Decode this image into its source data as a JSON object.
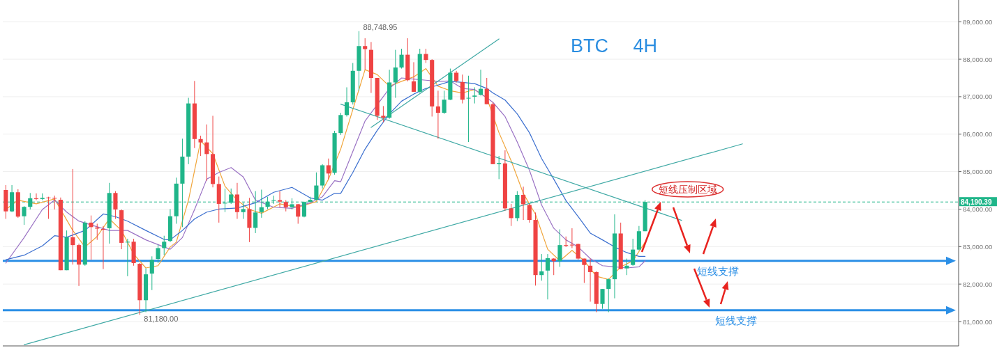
{
  "chart_data": {
    "type": "candlestick",
    "title": "BTC 4H",
    "categories": [
      null,
      null,
      null,
      null,
      null,
      null,
      null,
      null,
      null,
      null,
      null,
      null,
      null,
      null,
      null,
      null,
      null,
      null,
      null,
      null,
      null,
      null,
      null,
      null,
      null,
      null,
      null,
      null,
      null,
      null,
      null,
      null,
      null,
      null,
      null,
      null,
      null,
      null,
      null,
      null,
      null,
      null,
      null,
      null,
      null,
      null,
      null,
      null,
      null,
      null,
      null,
      null,
      null,
      null,
      null,
      null,
      null,
      null,
      null,
      null,
      null,
      null,
      null,
      null,
      null,
      null,
      null,
      null,
      null,
      null,
      null,
      null,
      null,
      null,
      null,
      null,
      null,
      null,
      null,
      null,
      null,
      null,
      null,
      null,
      null,
      null,
      null,
      null,
      null,
      null,
      null,
      null,
      null,
      null,
      null,
      null,
      null,
      null,
      null,
      null,
      null,
      null,
      null,
      null,
      null,
      null,
      null,
      null,
      null,
      null,
      null,
      null,
      null,
      null,
      null,
      null,
      null,
      null,
      null,
      null,
      null,
      null,
      null,
      null,
      null,
      null,
      null,
      null,
      null,
      null,
      null,
      null,
      null,
      null,
      null,
      null,
      null,
      null,
      null,
      null,
      null,
      null,
      null,
      null,
      null,
      null,
      null,
      null,
      null,
      null,
      null,
      null,
      null,
      null,
      null,
      null,
      null
    ],
    "ohlc": [
      [
        84510,
        84640,
        83740,
        83940
      ],
      [
        83940,
        84640,
        83920,
        84450
      ],
      [
        84450,
        84530,
        83770,
        83800
      ],
      [
        83810,
        84080,
        83580,
        84060
      ],
      [
        84060,
        84430,
        83990,
        84290
      ],
      [
        84290,
        84420,
        84240,
        84270
      ],
      [
        84270,
        84420,
        84240,
        84300
      ],
      [
        84310,
        84330,
        83740,
        84300
      ],
      [
        84300,
        84360,
        83990,
        84280
      ],
      [
        84250,
        84310,
        82370,
        82370
      ],
      [
        82370,
        83430,
        82370,
        83250
      ],
      [
        83250,
        85070,
        82520,
        83040
      ],
      [
        83040,
        83080,
        81950,
        82520
      ],
      [
        82520,
        83680,
        82490,
        83640
      ],
      [
        83640,
        83830,
        82650,
        83520
      ],
      [
        83510,
        83610,
        83180,
        83480
      ],
      [
        83470,
        83550,
        82400,
        83450
      ],
      [
        83490,
        84700,
        83080,
        84430
      ],
      [
        84430,
        84480,
        83740,
        83990
      ],
      [
        83970,
        83990,
        82930,
        83100
      ],
      [
        83110,
        83210,
        82210,
        83130
      ],
      [
        83130,
        83210,
        82490,
        82560
      ],
      [
        82540,
        82560,
        81180,
        81570
      ],
      [
        81570,
        82420,
        81250,
        82260
      ],
      [
        82280,
        82740,
        81840,
        82650
      ],
      [
        82670,
        83050,
        82560,
        82960
      ],
      [
        82960,
        83290,
        82770,
        83130
      ],
      [
        83150,
        84000,
        83120,
        83810
      ],
      [
        83810,
        84840,
        83610,
        84680
      ],
      [
        84680,
        85880,
        83520,
        85400
      ],
      [
        85400,
        86970,
        85200,
        86820
      ],
      [
        86820,
        87420,
        85630,
        85870
      ],
      [
        85870,
        85960,
        85420,
        85780
      ],
      [
        85780,
        86260,
        84760,
        85470
      ],
      [
        85470,
        86490,
        84580,
        84670
      ],
      [
        84670,
        84870,
        83640,
        84140
      ],
      [
        84150,
        84550,
        83920,
        84170
      ],
      [
        84170,
        84550,
        84140,
        84390
      ],
      [
        84390,
        84700,
        83740,
        83920
      ],
      [
        83920,
        84170,
        83740,
        84000
      ],
      [
        84000,
        84300,
        83120,
        83500
      ],
      [
        83500,
        84480,
        83360,
        83910
      ],
      [
        83920,
        84520,
        83770,
        84050
      ],
      [
        84060,
        84330,
        84000,
        84200
      ],
      [
        84220,
        84360,
        84140,
        84240
      ],
      [
        84240,
        84480,
        84050,
        84200
      ],
      [
        84190,
        84240,
        83940,
        84050
      ],
      [
        84050,
        84290,
        83990,
        84130
      ],
      [
        84130,
        84140,
        83610,
        83800
      ],
      [
        83800,
        84200,
        83780,
        84190
      ],
      [
        84190,
        84330,
        84190,
        84250
      ],
      [
        84250,
        84980,
        84230,
        84630
      ],
      [
        84630,
        85200,
        84550,
        85170
      ],
      [
        85170,
        85350,
        84800,
        84950
      ],
      [
        84970,
        86090,
        84920,
        86030
      ],
      [
        86030,
        86570,
        85980,
        86510
      ],
      [
        86510,
        87250,
        86470,
        86850
      ],
      [
        86850,
        87900,
        86790,
        87690
      ],
      [
        87690,
        88748.95,
        87160,
        88350
      ],
      [
        88350,
        88560,
        87720,
        88270
      ],
      [
        88250,
        88460,
        87100,
        87500
      ],
      [
        87500,
        87500,
        86380,
        86490
      ],
      [
        86490,
        86750,
        86320,
        86440
      ],
      [
        86440,
        87720,
        86410,
        87380
      ],
      [
        87380,
        88250,
        86970,
        87780
      ],
      [
        87780,
        88280,
        87750,
        88120
      ],
      [
        88120,
        88560,
        87410,
        87440
      ],
      [
        87410,
        87920,
        87130,
        87130
      ],
      [
        87130,
        88280,
        87110,
        88140
      ],
      [
        88140,
        88280,
        87900,
        87980
      ],
      [
        87980,
        88000,
        86470,
        86740
      ],
      [
        86740,
        87160,
        85880,
        86570
      ],
      [
        86570,
        87160,
        86540,
        86920
      ],
      [
        86920,
        87750,
        86910,
        87640
      ],
      [
        87640,
        87690,
        87380,
        87420
      ],
      [
        87390,
        87590,
        86820,
        86920
      ],
      [
        86950,
        87560,
        85790,
        86970
      ],
      [
        87000,
        87250,
        86820,
        87030
      ],
      [
        87050,
        87720,
        87030,
        87210
      ],
      [
        87210,
        87500,
        86800,
        86800
      ],
      [
        86800,
        86850,
        85200,
        85200
      ],
      [
        85200,
        85420,
        84800,
        85230
      ],
      [
        85220,
        85570,
        83960,
        84020
      ],
      [
        84020,
        84140,
        83550,
        83760
      ],
      [
        83760,
        84480,
        83680,
        84380
      ],
      [
        84380,
        84600,
        83710,
        84130
      ],
      [
        84110,
        84140,
        83640,
        83710
      ],
      [
        83710,
        83910,
        81960,
        82240
      ],
      [
        82240,
        82800,
        82090,
        82340
      ],
      [
        82360,
        82800,
        81590,
        82690
      ],
      [
        82680,
        82690,
        82240,
        82610
      ],
      [
        82610,
        83460,
        82460,
        83040
      ],
      [
        83040,
        83270,
        82990,
        83020
      ],
      [
        83050,
        83490,
        82960,
        83040
      ],
      [
        83070,
        83080,
        82650,
        82680
      ],
      [
        82680,
        82680,
        82030,
        82510
      ],
      [
        82490,
        82680,
        81530,
        82320
      ],
      [
        82320,
        82340,
        81250,
        81470
      ],
      [
        81470,
        81870,
        81340,
        81870
      ],
      [
        81870,
        82150,
        81250,
        82130
      ],
      [
        82130,
        83860,
        81620,
        83350
      ],
      [
        83350,
        83640,
        82400,
        82400
      ],
      [
        82420,
        82680,
        82240,
        82490
      ],
      [
        82510,
        83210,
        82490,
        82920
      ],
      [
        82920,
        83550,
        82900,
        83410
      ],
      [
        83410,
        84240,
        83410,
        84190.39
      ],
      null,
      null,
      null,
      null,
      null,
      null,
      null,
      null,
      null,
      null,
      null,
      null,
      null,
      null,
      null,
      null,
      null,
      null,
      null,
      null,
      null,
      null,
      null,
      null,
      null,
      null,
      null,
      null,
      null,
      null,
      null,
      null,
      null,
      null,
      null,
      null,
      null,
      null,
      null,
      null,
      null,
      null,
      null,
      null,
      null,
      null,
      null,
      null,
      null,
      null,
      null
    ],
    "colors": [
      "#ef4343",
      "#1fb589",
      "#ef4343",
      "#1fb589",
      "#1fb589",
      "#ef4343",
      "#1fb589",
      "#ef4343",
      "#ef4343",
      "#ef4343",
      "#1fb589",
      "#ef4343",
      "#ef4343",
      "#1fb589",
      "#ef4343",
      "#ef4343",
      "#ef4343",
      "#1fb589",
      "#ef4343",
      "#ef4343",
      "#1fb589",
      "#ef4343",
      "#ef4343",
      "#1fb589",
      "#1fb589",
      "#1fb589",
      "#1fb589",
      "#1fb589",
      "#1fb589",
      "#1fb589",
      "#1fb589",
      "#ef4343",
      "#ef4343",
      "#ef4343",
      "#ef4343",
      "#ef4343",
      "#1fb589",
      "#1fb589",
      "#ef4343",
      "#1fb589",
      "#ef4343",
      "#1fb589",
      "#1fb589",
      "#1fb589",
      "#1fb589",
      "#ef4343",
      "#ef4343",
      "#1fb589",
      "#ef4343",
      "#1fb589",
      "#1fb589",
      "#1fb589",
      "#1fb589",
      "#ef4343",
      "#1fb589",
      "#1fb589",
      "#1fb589",
      "#1fb589",
      "#1fb589",
      "#ef4343",
      "#ef4343",
      "#ef4343",
      "#ef4343",
      "#1fb589",
      "#1fb589",
      "#1fb589",
      "#ef4343",
      "#ef4343",
      "#1fb589",
      "#ef4343",
      "#ef4343",
      "#ef4343",
      "#1fb589",
      "#1fb589",
      "#ef4343",
      "#ef4343",
      "#1fb589",
      "#1fb589",
      "#1fb589",
      "#ef4343",
      "#ef4343",
      "#1fb589",
      "#ef4343",
      "#ef4343",
      "#1fb589",
      "#ef4343",
      "#ef4343",
      "#ef4343",
      "#1fb589",
      "#1fb589",
      "#ef4343",
      "#1fb589",
      "#ef4343",
      "#ef4343",
      "#ef4343",
      "#ef4343",
      "#ef4343",
      "#ef4343",
      "#1fb589",
      "#1fb589",
      "#1fb589",
      "#ef4343",
      "#1fb589",
      "#1fb589",
      "#1fb589",
      "#1fb589",
      null,
      null,
      null,
      null,
      null,
      null,
      null,
      null,
      null,
      null,
      null,
      null,
      null,
      null,
      null,
      null,
      null,
      null,
      null,
      null,
      null,
      null,
      null,
      null,
      null,
      null,
      null,
      null,
      null,
      null,
      null,
      null,
      null,
      null,
      null,
      null,
      null,
      null,
      null,
      null,
      null,
      null,
      null,
      null,
      null,
      null,
      null,
      null,
      null,
      null,
      null
    ],
    "series": [
      {
        "type": "line",
        "color": "#f0a53a",
        "values": [
          83990,
          null,
          84240,
          null,
          null,
          84140,
          null,
          null,
          84270,
          null,
          null,
          83430,
          null,
          82990,
          null,
          83270,
          null,
          83740,
          null,
          83430,
          null,
          82800,
          null,
          82430,
          null,
          82490,
          null,
          82990,
          83120,
          null,
          84240,
          null,
          85820,
          null,
          85480,
          null,
          84610,
          null,
          84240,
          null,
          83990,
          null,
          83890,
          null,
          null,
          84140,
          null,
          null,
          84050,
          null,
          null,
          84200,
          null,
          84800,
          null,
          85600,
          null,
          null,
          null,
          87720,
          null,
          87590,
          null,
          87280,
          null,
          87410,
          null,
          87530,
          null,
          87750,
          null,
          87280,
          null,
          87160,
          null,
          87100,
          null,
          87190,
          null,
          86970,
          null,
          86040,
          null,
          85290,
          null,
          84420,
          null,
          83860,
          null,
          82930,
          null,
          82620,
          null,
          82900,
          null,
          82620,
          null,
          82210,
          null,
          82120,
          null,
          82460,
          null,
          82620,
          null,
          83120,
          null,
          null,
          null,
          null,
          null,
          null,
          null,
          null,
          null,
          null,
          null,
          null,
          null,
          null,
          null,
          null,
          null,
          null,
          null,
          null,
          null,
          null,
          null,
          null,
          null,
          null,
          null,
          null,
          null,
          null,
          null,
          null,
          null,
          null,
          null,
          null,
          null,
          null,
          null,
          null,
          null,
          null,
          null,
          null,
          null,
          null,
          null,
          null,
          null,
          null,
          null
        ]
      },
      {
        "type": "line",
        "color": "#9a72c4",
        "values": [
          82560,
          null,
          null,
          83240,
          null,
          null,
          83990,
          null,
          84240,
          null,
          83920,
          null,
          83680,
          null,
          83580,
          null,
          null,
          83430,
          null,
          null,
          83430,
          null,
          null,
          83180,
          null,
          null,
          82990,
          82930,
          null,
          83240,
          null,
          83990,
          null,
          84800,
          null,
          84980,
          null,
          85110,
          null,
          84860,
          null,
          84240,
          null,
          null,
          84050,
          null,
          null,
          84020,
          null,
          null,
          84170,
          null,
          84330,
          null,
          84760,
          84730,
          null,
          85540,
          null,
          86350,
          null,
          null,
          null,
          87220,
          null,
          87500,
          null,
          87470,
          null,
          87440,
          null,
          87410,
          null,
          87420,
          null,
          87220,
          null,
          87190,
          null,
          86970,
          86850,
          null,
          86470,
          null,
          85790,
          null,
          85040,
          null,
          84110,
          null,
          83490,
          null,
          83180,
          null,
          82990,
          null,
          82680,
          null,
          82490,
          null,
          82460,
          null,
          82430,
          null,
          82460,
          82620,
          null,
          null,
          null,
          null,
          null,
          null,
          null,
          null,
          null,
          null,
          null,
          null,
          null,
          null,
          null,
          null,
          null,
          null,
          null,
          null,
          null,
          null,
          null,
          null,
          null,
          null,
          null,
          null,
          null,
          null,
          null,
          null,
          null,
          null,
          null,
          null,
          null,
          null,
          null,
          null,
          null,
          null,
          null,
          null,
          null,
          null,
          null,
          null,
          null,
          null,
          null
        ]
      },
      {
        "type": "line",
        "color": "#3b6fcf",
        "values": [
          82650,
          null,
          null,
          82770,
          null,
          null,
          83020,
          null,
          83290,
          null,
          83250,
          null,
          null,
          83430,
          null,
          null,
          83870,
          null,
          83800,
          null,
          83680,
          null,
          null,
          83430,
          null,
          null,
          83190,
          83180,
          null,
          83430,
          null,
          83740,
          null,
          83920,
          null,
          84000,
          null,
          null,
          84030,
          null,
          null,
          84170,
          null,
          null,
          84450,
          null,
          null,
          84580,
          null,
          null,
          84300,
          null,
          84240,
          null,
          84420,
          84420,
          null,
          84980,
          null,
          85600,
          null,
          86100,
          null,
          86540,
          null,
          86880,
          null,
          87070,
          null,
          87220,
          null,
          87310,
          null,
          87410,
          null,
          87380,
          null,
          87350,
          null,
          87220,
          87100,
          null,
          86910,
          null,
          86540,
          null,
          86040,
          null,
          85350,
          null,
          84800,
          null,
          84230,
          null,
          83800,
          null,
          83360,
          null,
          83180,
          null,
          82990,
          null,
          82840,
          null,
          82740,
          82740,
          null,
          null,
          null,
          null,
          null,
          null,
          null,
          null,
          null,
          null,
          null,
          null,
          null,
          null,
          null,
          null,
          null,
          null,
          null,
          null,
          null,
          null,
          null,
          null,
          null,
          null,
          null,
          null,
          null,
          null,
          null,
          null,
          null,
          null,
          null,
          null,
          null,
          null,
          null,
          null,
          null,
          null,
          null,
          null,
          null,
          null,
          null,
          null,
          null,
          null,
          null
        ]
      },
      {
        "type": "line",
        "color": "#3fa9a5",
        "values": [
          null,
          null,
          null,
          80380,
          null,
          null,
          null,
          null,
          null,
          null,
          null,
          null,
          null,
          null,
          null,
          null,
          null,
          null,
          null,
          null,
          null,
          null,
          null,
          null,
          null,
          null,
          null,
          null,
          null,
          null,
          null,
          null,
          null,
          null,
          null,
          null,
          null,
          null,
          null,
          null,
          null,
          null,
          null,
          null,
          null,
          null,
          null,
          null,
          null,
          null,
          null,
          null,
          null,
          null,
          null,
          null,
          null,
          null,
          null,
          null,
          null,
          null,
          null,
          null,
          null,
          null,
          null,
          null,
          null,
          null,
          null,
          null,
          null,
          null,
          null,
          null,
          null,
          null,
          null,
          null,
          null,
          null,
          null,
          null,
          null,
          null,
          null,
          null,
          null,
          null,
          null,
          null,
          null,
          null,
          null,
          null,
          null,
          null,
          null,
          null,
          null,
          null,
          null,
          null,
          null,
          null,
          null,
          null,
          null,
          null,
          null,
          null,
          null,
          null,
          null,
          null,
          null,
          null,
          null,
          null,
          null,
          85740,
          null,
          null,
          null,
          null,
          null,
          null,
          null,
          null,
          null,
          null,
          null,
          null,
          null,
          null,
          null,
          null,
          null,
          null,
          null,
          null,
          null,
          null,
          null,
          null,
          null,
          null,
          null,
          null,
          null,
          null,
          null,
          null,
          null,
          null,
          null
        ]
      },
      {
        "type": "line",
        "color": "#3fa9a5",
        "values": [
          null,
          null,
          null,
          null,
          null,
          null,
          null,
          null,
          null,
          null,
          null,
          null,
          null,
          null,
          null,
          null,
          null,
          null,
          null,
          null,
          null,
          null,
          null,
          null,
          null,
          null,
          null,
          null,
          null,
          null,
          null,
          null,
          null,
          null,
          null,
          null,
          null,
          null,
          null,
          null,
          null,
          null,
          null,
          null,
          null,
          null,
          null,
          null,
          null,
          null,
          null,
          null,
          null,
          null,
          null,
          86800,
          null,
          null,
          null,
          null,
          null,
          null,
          null,
          null,
          null,
          null,
          null,
          null,
          null,
          null,
          null,
          null,
          null,
          null,
          null,
          null,
          null,
          null,
          null,
          null,
          null,
          null,
          null,
          null,
          null,
          null,
          null,
          null,
          null,
          null,
          null,
          null,
          null,
          null,
          null,
          null,
          null,
          null,
          null,
          null,
          null,
          null,
          null,
          null,
          null,
          null,
          null,
          null,
          null,
          null,
          null,
          83700,
          null,
          null,
          null,
          null,
          null,
          null,
          null,
          null,
          null,
          null,
          null,
          null,
          null,
          null,
          null,
          null,
          null,
          null,
          null,
          null,
          null,
          null,
          null,
          null,
          null,
          null,
          null,
          null,
          null,
          null,
          null,
          null,
          null,
          null,
          null,
          null,
          null,
          null,
          null,
          null,
          null,
          null,
          null,
          null,
          null
        ]
      },
      {
        "type": "line",
        "color": "#3fa9a5",
        "values": [
          null,
          null,
          null,
          null,
          null,
          null,
          null,
          null,
          null,
          null,
          null,
          null,
          null,
          null,
          null,
          null,
          null,
          null,
          null,
          null,
          null,
          null,
          null,
          null,
          null,
          null,
          null,
          null,
          null,
          null,
          null,
          null,
          null,
          null,
          null,
          null,
          null,
          null,
          null,
          null,
          null,
          null,
          null,
          null,
          null,
          null,
          null,
          null,
          null,
          null,
          null,
          null,
          null,
          null,
          null,
          null,
          null,
          null,
          null,
          null,
          86180,
          null,
          null,
          null,
          null,
          null,
          null,
          null,
          null,
          null,
          null,
          null,
          null,
          null,
          null,
          null,
          null,
          null,
          null,
          null,
          null,
          88540,
          null,
          null,
          null,
          null,
          null,
          null,
          null,
          null,
          null,
          null,
          null,
          null,
          null,
          null,
          null,
          null,
          null,
          null,
          null,
          null,
          null,
          null,
          null,
          null,
          null,
          null,
          null,
          null,
          null,
          null,
          null,
          null,
          null,
          null,
          null,
          null,
          null,
          null,
          null,
          null,
          null,
          null,
          null,
          null,
          null,
          null,
          null,
          null,
          null,
          null,
          null,
          null,
          null,
          null,
          null,
          null,
          null,
          null,
          null,
          null,
          null,
          null,
          null,
          null,
          null,
          null,
          null,
          null,
          null,
          null,
          null,
          null,
          null,
          null,
          null
        ]
      }
    ],
    "ylim": [
      80350,
      89580
    ],
    "yticks": [
      {
        "value": 81000,
        "label": "81,000.00"
      },
      {
        "value": 82000,
        "label": "82,000.00"
      },
      {
        "value": 83000,
        "label": "83,000.00"
      },
      {
        "value": 84000,
        "label": "84,000.00"
      },
      {
        "value": 85000,
        "label": "85,000.00"
      },
      {
        "value": 86000,
        "label": "86,000.00"
      },
      {
        "value": 87000,
        "label": "87,000.00"
      },
      {
        "value": 88000,
        "label": "88,000.00"
      },
      {
        "value": 89000,
        "label": "89,000.00"
      }
    ],
    "ref_lines": [
      {
        "axis": "y",
        "value": 84190.39,
        "label": "84,190.39",
        "color": "#1fb589",
        "line_style": "dashed"
      },
      {
        "axis": "y",
        "value": 82620,
        "label": "短线支撑",
        "color": "#2b8fe6",
        "line_style": "solid"
      },
      {
        "axis": "y",
        "value": 81300,
        "label": "短线支撑",
        "color": "#2b8fe6",
        "line_style": "solid"
      }
    ],
    "annotations": [
      "88,748.95",
      "81,180.00",
      "短线压制区域"
    ],
    "grid": "y",
    "tick_labels": "y",
    "marker": "none"
  }
}
